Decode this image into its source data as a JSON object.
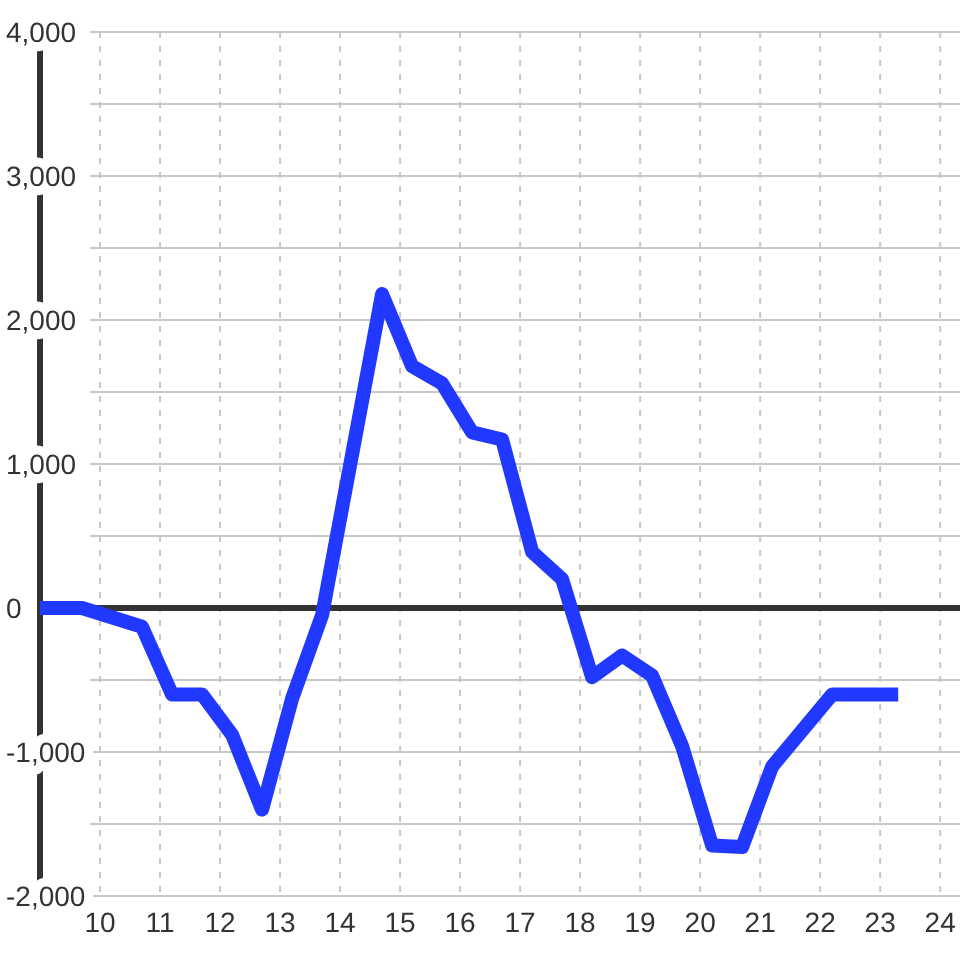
{
  "chart_data": {
    "type": "line",
    "x": [
      9,
      9.7,
      10.7,
      11.2,
      11.7,
      12.2,
      12.7,
      13.2,
      13.7,
      14.7,
      15.2,
      15.7,
      16.2,
      16.7,
      17.2,
      17.7,
      18.2,
      18.7,
      19.2,
      19.7,
      20.2,
      20.7,
      21.2,
      22.2,
      23.3
    ],
    "series": [
      {
        "color": "#2038ff",
        "values": [
          0,
          0,
          -130,
          -600,
          -600,
          -880,
          -1400,
          -630,
          -50,
          2180,
          1680,
          1560,
          1220,
          1170,
          390,
          200,
          -480,
          -330,
          -470,
          -960,
          -1650,
          -1660,
          -1100,
          -600,
          -600
        ]
      }
    ],
    "xlim": [
      9,
      24.33
    ],
    "xticks": [
      10,
      11,
      12,
      13,
      14,
      15,
      16,
      17,
      18,
      19,
      20,
      21,
      22,
      23,
      24
    ],
    "ylim": [
      -2000,
      4000
    ],
    "yticks": [
      {
        "value": -2000,
        "label": "-2,000"
      },
      {
        "value": -1500,
        "label": null
      },
      {
        "value": -1000,
        "label": "-1,000"
      },
      {
        "value": -500,
        "label": null
      },
      0,
      {
        "value": 500,
        "label": null
      },
      {
        "value": 1000,
        "label": "1,000"
      },
      {
        "value": 1500,
        "label": null
      },
      {
        "value": 2000,
        "label": "2,000"
      },
      {
        "value": 2500,
        "label": null
      },
      {
        "value": 3000,
        "label": "3,000"
      },
      {
        "value": 3500,
        "label": null
      },
      {
        "value": 4000,
        "label": "4,000"
      }
    ],
    "grid": true,
    "ref_lines": [
      {
        "axis": "y",
        "value": 0,
        "color": "#333333"
      }
    ]
  }
}
